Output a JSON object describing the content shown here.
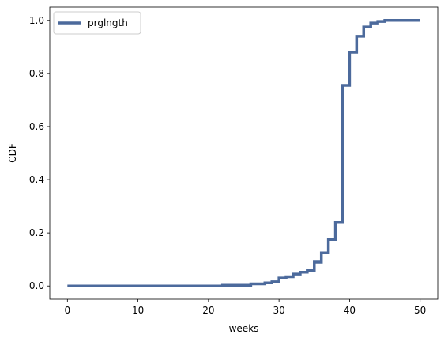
{
  "chart_data": {
    "type": "line",
    "step": "post",
    "title": "",
    "xlabel": "weeks",
    "ylabel": "CDF",
    "xlim": [
      -2.5,
      52.5
    ],
    "ylim": [
      -0.05,
      1.05
    ],
    "xticks": [
      0,
      10,
      20,
      30,
      40,
      50
    ],
    "yticks": [
      0.0,
      0.2,
      0.4,
      0.6,
      0.8,
      1.0
    ],
    "xtick_labels": [
      "0",
      "10",
      "20",
      "30",
      "40",
      "50"
    ],
    "ytick_labels": [
      "0.0",
      "0.2",
      "0.4",
      "0.6",
      "0.8",
      "1.0"
    ],
    "grid": false,
    "legend_position": "top-left",
    "series": [
      {
        "name": "prglngth",
        "color": "#4c6a9c",
        "x": [
          0,
          22,
          26,
          28,
          29,
          30,
          31,
          32,
          33,
          34,
          35,
          36,
          37,
          38,
          39,
          40,
          41,
          42,
          43,
          44,
          45,
          50
        ],
        "y": [
          0.0,
          0.003,
          0.008,
          0.012,
          0.016,
          0.03,
          0.035,
          0.045,
          0.052,
          0.058,
          0.09,
          0.125,
          0.175,
          0.24,
          0.755,
          0.88,
          0.94,
          0.975,
          0.99,
          0.996,
          1.0,
          1.0
        ]
      }
    ]
  }
}
